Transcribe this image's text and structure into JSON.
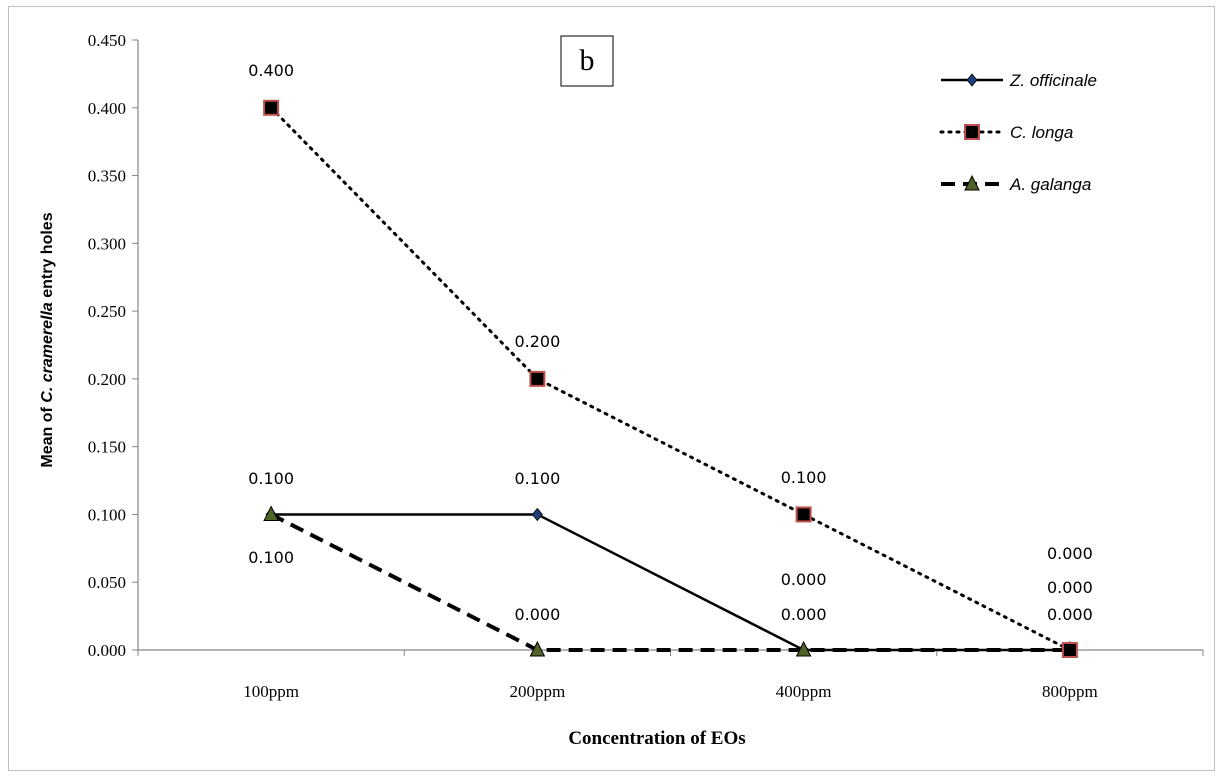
{
  "chart_data": {
    "type": "line",
    "panel_label": "b",
    "xlabel": "Concentration of EOs",
    "ylabel_parts": [
      "Mean of ",
      "C. cramerella",
      " entry holes"
    ],
    "categories": [
      "100ppm",
      "200ppm",
      "400ppm",
      "800ppm"
    ],
    "yticks": [
      "0.000",
      "0.050",
      "0.100",
      "0.150",
      "0.200",
      "0.250",
      "0.300",
      "0.350",
      "0.400",
      "0.450"
    ],
    "ylim": [
      0,
      0.45
    ],
    "grid": false,
    "legend_position": "top-right",
    "series": [
      {
        "name": "Z. officinale",
        "values": [
          0.1,
          0.1,
          0.0,
          0.0
        ],
        "labels": [
          "",
          "0.100",
          "0.000",
          "0.000"
        ],
        "line_style": "solid",
        "marker": "diamond",
        "marker_color": "#1f3f7a",
        "line_color": "#000000"
      },
      {
        "name": "C. longa",
        "values": [
          0.4,
          0.2,
          0.1,
          0.0
        ],
        "labels": [
          "0.400",
          "0.200",
          "0.100",
          "0.000"
        ],
        "line_style": "dotted",
        "marker": "square",
        "marker_color": "#000000",
        "marker_edge": "#c0504d",
        "line_color": "#000000"
      },
      {
        "name": "A. galanga",
        "values": [
          0.1,
          0.0,
          0.0,
          0.0
        ],
        "labels": [
          "0.100",
          "0.000",
          "0.000",
          "0.000"
        ],
        "line_style": "dashed",
        "marker": "triangle",
        "marker_color": "#4f6228",
        "line_color": "#000000"
      }
    ],
    "top_labels": [
      "0.100",
      "",
      "",
      ""
    ]
  }
}
